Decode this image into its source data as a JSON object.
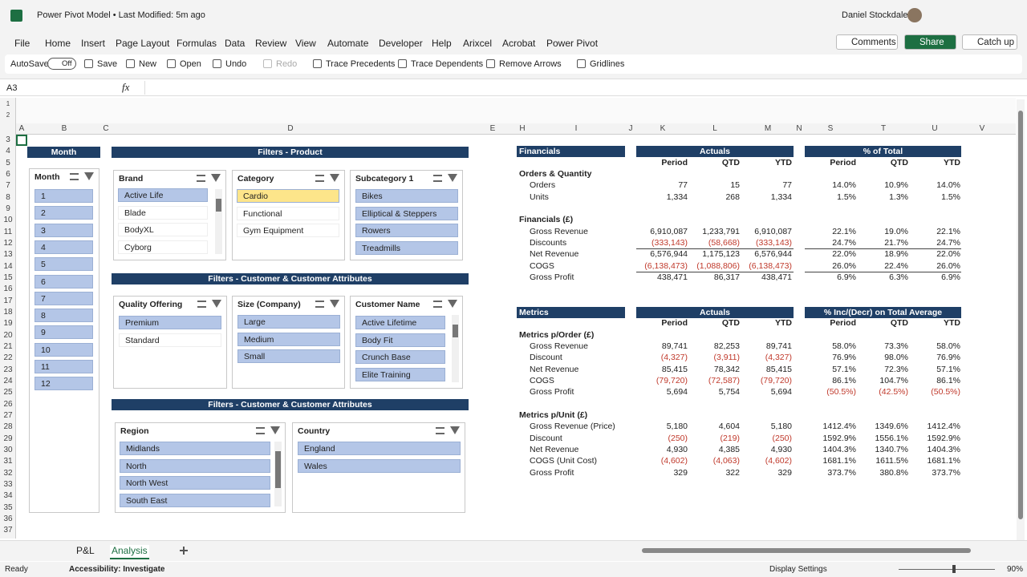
{
  "title_bar": {
    "title": "Power Pivot Model • Last Modified: 5m ago",
    "user": "Daniel Stockdale"
  },
  "menu": [
    "File",
    "Home",
    "Insert",
    "Page Layout",
    "Formulas",
    "Data",
    "Review",
    "View",
    "Automate",
    "Developer",
    "Help",
    "Arixcel",
    "Acrobat",
    "Power Pivot"
  ],
  "menu_buttons": [
    "Comments",
    "Share",
    "Catch up"
  ],
  "toolbar": {
    "autosave": "AutoSave",
    "autosave_state": "Off",
    "buttons": [
      "Save",
      "New",
      "Open",
      "Undo",
      "Redo",
      "Trace Precedents",
      "Trace Dependents",
      "Remove Arrows",
      "Gridlines"
    ]
  },
  "formula_bar": {
    "name_box": "A3",
    "fx": "fx"
  },
  "column_headers": [
    "A",
    "B",
    "C",
    "D",
    "E",
    "H",
    "I",
    "J",
    "K",
    "L",
    "M",
    "N",
    "S",
    "T",
    "U",
    "V"
  ],
  "row_headers": [
    1,
    2,
    3,
    4,
    5,
    6,
    7,
    8,
    9,
    10,
    11,
    12,
    13,
    14,
    15,
    16,
    17,
    18,
    19,
    20,
    21,
    22,
    23,
    24,
    25,
    26,
    27,
    28,
    29,
    30,
    31,
    32,
    33,
    34,
    35,
    36,
    37
  ],
  "section_headers": [
    "Month",
    "Filters - Product",
    "Filters - Customer & Customer Attributes",
    "Filters - Customer & Customer Attributes"
  ],
  "slicers": [
    {
      "title": "Month",
      "items": [
        {
          "label": 1,
          "state": "selected"
        },
        {
          "label": 2,
          "state": "selected"
        },
        {
          "label": 3,
          "state": "selected"
        },
        {
          "label": 4,
          "state": "selected"
        },
        {
          "label": 5,
          "state": "selected"
        },
        {
          "label": 6,
          "state": "selected"
        },
        {
          "label": 7,
          "state": "selected"
        },
        {
          "label": 8,
          "state": "selected"
        },
        {
          "label": 9,
          "state": "selected"
        },
        {
          "label": 10,
          "state": "selected"
        },
        {
          "label": 11,
          "state": "selected"
        },
        {
          "label": 12,
          "state": "selected"
        }
      ]
    },
    {
      "title": "Brand",
      "items": [
        {
          "label": "Active Life",
          "state": "selected"
        },
        {
          "label": "Blade",
          "state": "unselected"
        },
        {
          "label": "BodyXL",
          "state": "unselected"
        },
        {
          "label": "Cyborg",
          "state": "unselected"
        }
      ]
    },
    {
      "title": "Category",
      "items": [
        {
          "label": "Cardio",
          "state": "hover"
        },
        {
          "label": "Functional",
          "state": "unselected"
        },
        {
          "label": "Gym Equipment",
          "state": "unselected"
        }
      ]
    },
    {
      "title": "Subcategory 1",
      "items": [
        {
          "label": "Bikes",
          "state": "selected"
        },
        {
          "label": "Elliptical & Steppers",
          "state": "selected"
        },
        {
          "label": "Rowers",
          "state": "selected"
        },
        {
          "label": "Treadmills",
          "state": "selected"
        }
      ]
    },
    {
      "title": "Quality Offering",
      "items": [
        {
          "label": "Premium",
          "state": "selected"
        },
        {
          "label": "Standard",
          "state": "unselected"
        }
      ]
    },
    {
      "title": "Size (Company)",
      "items": [
        {
          "label": "Large",
          "state": "selected"
        },
        {
          "label": "Medium",
          "state": "selected"
        },
        {
          "label": "Small",
          "state": "selected"
        }
      ]
    },
    {
      "title": "Customer Name",
      "items": [
        {
          "label": "Active Lifetime",
          "state": "selected"
        },
        {
          "label": "Body Fit",
          "state": "selected"
        },
        {
          "label": "Crunch Base",
          "state": "selected"
        },
        {
          "label": "Elite Training",
          "state": "selected"
        }
      ]
    },
    {
      "title": "Region",
      "items": [
        {
          "label": "Midlands",
          "state": "selected"
        },
        {
          "label": "North",
          "state": "selected"
        },
        {
          "label": "North West",
          "state": "selected"
        },
        {
          "label": "South East",
          "state": "selected"
        }
      ]
    },
    {
      "title": "Country",
      "items": [
        {
          "label": "England",
          "state": "selected"
        },
        {
          "label": "Wales",
          "state": "selected"
        }
      ]
    }
  ],
  "tables": [
    {
      "headers": [
        "Financials",
        "Actuals",
        "% of Total"
      ],
      "columns": [
        "Period",
        "QTD",
        "YTD",
        "Period",
        "QTD",
        "YTD"
      ],
      "groups": [
        {
          "title": "Orders & Quantity",
          "rows": [
            {
              "label": "Orders",
              "values": [
                "77",
                "15",
                "77",
                "14.0%",
                "10.9%",
                "14.0%"
              ]
            },
            {
              "label": "Units",
              "values": [
                "1,334",
                "268",
                "1,334",
                "1.5%",
                "1.3%",
                "1.5%"
              ]
            }
          ]
        },
        {
          "title": "Financials (£)",
          "rows": [
            {
              "label": "Gross Revenue",
              "values": [
                "6,910,087",
                "1,233,791",
                "6,910,087",
                "22.1%",
                "19.0%",
                "22.1%"
              ]
            },
            {
              "label": "Discounts",
              "values": [
                "(333,143)",
                "(58,668)",
                "(333,143)",
                "24.7%",
                "21.7%",
                "24.7%"
              ]
            },
            {
              "label": "Net Revenue",
              "values": [
                "6,576,944",
                "1,175,123",
                "6,576,944",
                "22.0%",
                "18.9%",
                "22.0%"
              ]
            },
            {
              "label": "COGS",
              "values": [
                "(6,138,473)",
                "(1,088,806)",
                "(6,138,473)",
                "26.0%",
                "22.4%",
                "26.0%"
              ]
            },
            {
              "label": "Gross Profit",
              "values": [
                "438,471",
                "86,317",
                "438,471",
                "6.9%",
                "6.3%",
                "6.9%"
              ]
            }
          ]
        }
      ]
    },
    {
      "headers": [
        "Metrics",
        "Actuals",
        "% Inc/(Decr) on Total Average"
      ],
      "columns": [
        "Period",
        "QTD",
        "YTD",
        "Period",
        "QTD",
        "YTD"
      ],
      "groups": [
        {
          "title": "Metrics p/Order (£)",
          "rows": [
            {
              "label": "Gross Revenue",
              "values": [
                "89,741",
                "82,253",
                "89,741",
                "58.0%",
                "73.3%",
                "58.0%"
              ]
            },
            {
              "label": "Discount",
              "values": [
                "(4,327)",
                "(3,911)",
                "(4,327)",
                "76.9%",
                "98.0%",
                "76.9%"
              ]
            },
            {
              "label": "Net Revenue",
              "values": [
                "85,415",
                "78,342",
                "85,415",
                "57.1%",
                "72.3%",
                "57.1%"
              ]
            },
            {
              "label": "COGS",
              "values": [
                "(79,720)",
                "(72,587)",
                "(79,720)",
                "86.1%",
                "104.7%",
                "86.1%"
              ]
            },
            {
              "label": "Gross Profit",
              "values": [
                "5,694",
                "5,754",
                "5,694",
                "(50.5%)",
                "(42.5%)",
                "(50.5%)"
              ]
            }
          ]
        },
        {
          "title": "Metrics p/Unit (£)",
          "rows": [
            {
              "label": "Gross Revenue (Price)",
              "values": [
                "5,180",
                "4,604",
                "5,180",
                "1412.4%",
                "1349.6%",
                "1412.4%"
              ]
            },
            {
              "label": "Discount",
              "values": [
                "(250)",
                "(219)",
                "(250)",
                "1592.9%",
                "1556.1%",
                "1592.9%"
              ]
            },
            {
              "label": "Net Revenue",
              "values": [
                "4,930",
                "4,385",
                "4,930",
                "1404.3%",
                "1340.7%",
                "1404.3%"
              ]
            },
            {
              "label": "COGS (Unit Cost)",
              "values": [
                "(4,602)",
                "(4,063)",
                "(4,602)",
                "1681.1%",
                "1611.5%",
                "1681.1%"
              ]
            },
            {
              "label": "Gross Profit",
              "values": [
                "329",
                "322",
                "329",
                "373.7%",
                "380.8%",
                "373.7%"
              ]
            }
          ]
        }
      ]
    }
  ],
  "sheet_tabs": [
    "P&L",
    "Analysis"
  ],
  "active_tab": "Analysis",
  "status_bar": {
    "ready": "Ready",
    "accessibility": "Accessibility: Investigate",
    "display_settings": "Display Settings",
    "zoom": "90%"
  }
}
